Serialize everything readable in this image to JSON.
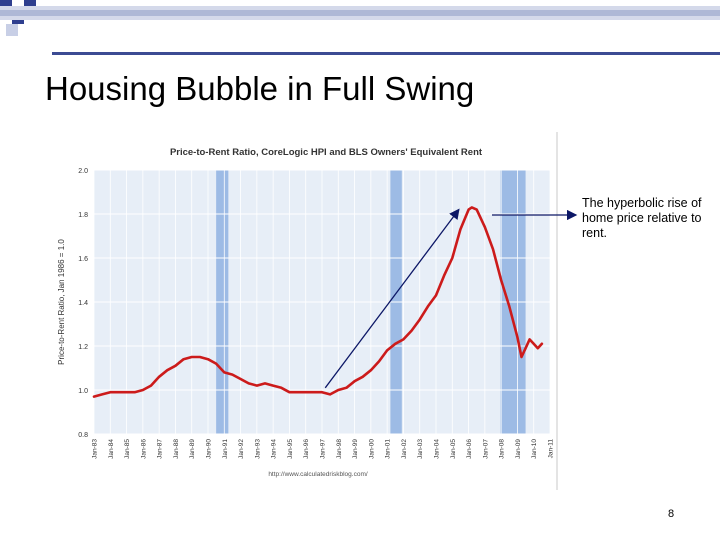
{
  "slide": {
    "title": "Housing Bubble in Full Swing",
    "callout": "The hyperbolic rise of home price relative to rent.",
    "page_number": "8"
  },
  "chart_data": {
    "type": "line",
    "title": "Price-to-Rent Ratio, CoreLogic HPI and BLS Owners' Equivalent Rent",
    "ylabel": "Price-to-Rent Ratio, Jan 1986 = 1.0",
    "xlabel": "",
    "source": "http://www.calculatedriskblog.com/",
    "ylim": [
      0.8,
      2.0
    ],
    "yticks": [
      "2.0",
      "1.8",
      "1.6",
      "1.4",
      "1.2",
      "1.0",
      "0.8"
    ],
    "xticks": [
      "Jan-83",
      "Jan-84",
      "Jan-85",
      "Jan-86",
      "Jan-87",
      "Jan-88",
      "Jan-89",
      "Jan-90",
      "Jan-91",
      "Jan-92",
      "Jan-93",
      "Jan-94",
      "Jan-95",
      "Jan-96",
      "Jan-97",
      "Jan-98",
      "Jan-99",
      "Jan-00",
      "Jan-01",
      "Jan-02",
      "Jan-03",
      "Jan-04",
      "Jan-05",
      "Jan-06",
      "Jan-07",
      "Jan-08",
      "Jan-09",
      "Jan-10",
      "Jan-11"
    ],
    "grid": true,
    "recession_shading": [
      [
        1990.5,
        1991.25
      ],
      [
        2001.2,
        2001.9
      ],
      [
        2007.95,
        2009.5
      ]
    ],
    "series": [
      {
        "color": "#cc1b1b",
        "x": [
          1983.0,
          1983.5,
          1984.0,
          1984.5,
          1985.0,
          1985.5,
          1986.0,
          1986.5,
          1987.0,
          1987.5,
          1988.0,
          1988.5,
          1989.0,
          1989.5,
          1990.0,
          1990.5,
          1991.0,
          1991.5,
          1992.0,
          1992.5,
          1993.0,
          1993.5,
          1994.0,
          1994.5,
          1995.0,
          1995.5,
          1996.0,
          1996.5,
          1997.0,
          1997.5,
          1998.0,
          1998.5,
          1999.0,
          1999.5,
          2000.0,
          2000.5,
          2001.0,
          2001.5,
          2002.0,
          2002.5,
          2003.0,
          2003.5,
          2004.0,
          2004.5,
          2005.0,
          2005.5,
          2006.0,
          2006.2,
          2006.5,
          2007.0,
          2007.5,
          2008.0,
          2008.5,
          2009.0,
          2009.25,
          2009.5,
          2009.75,
          2010.0,
          2010.25,
          2010.5
        ],
        "values": [
          0.97,
          0.98,
          0.99,
          0.99,
          0.99,
          0.99,
          1.0,
          1.02,
          1.06,
          1.09,
          1.11,
          1.14,
          1.15,
          1.15,
          1.14,
          1.12,
          1.08,
          1.07,
          1.05,
          1.03,
          1.02,
          1.03,
          1.02,
          1.01,
          0.99,
          0.99,
          0.99,
          0.99,
          0.99,
          0.98,
          1.0,
          1.01,
          1.04,
          1.06,
          1.09,
          1.13,
          1.18,
          1.21,
          1.23,
          1.27,
          1.32,
          1.38,
          1.43,
          1.52,
          1.6,
          1.73,
          1.82,
          1.83,
          1.82,
          1.74,
          1.64,
          1.5,
          1.38,
          1.24,
          1.15,
          1.19,
          1.23,
          1.21,
          1.19,
          1.21
        ]
      }
    ],
    "annotation_arrow": {
      "from": [
        1997.2,
        1.01
      ],
      "to": [
        2005.4,
        1.82
      ]
    },
    "callout_arrow": true
  }
}
